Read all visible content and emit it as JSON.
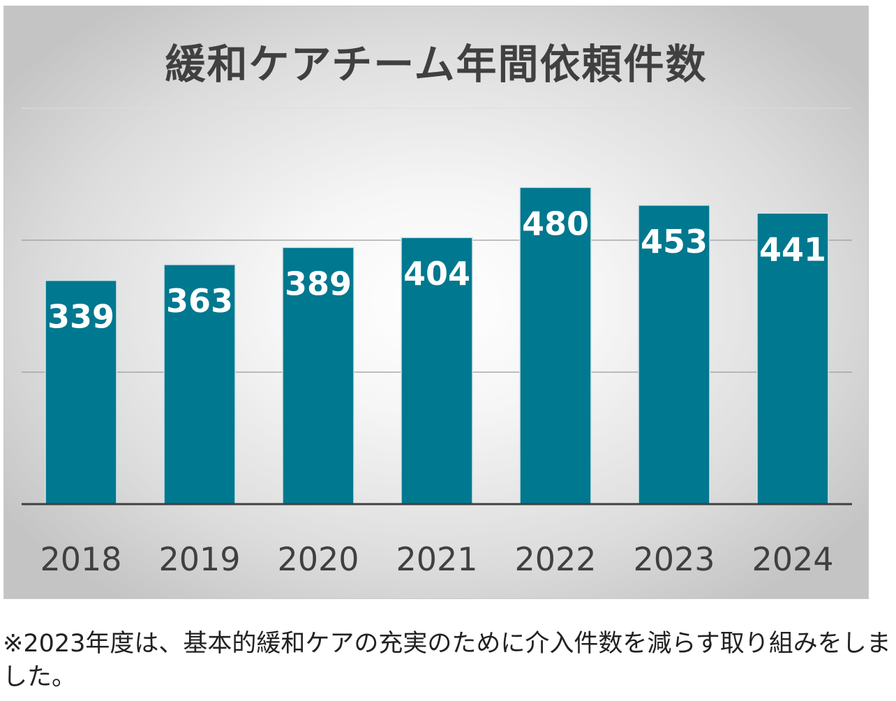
{
  "chart_data": {
    "type": "bar",
    "title": "緩和ケアチーム年間依頼件数",
    "categories": [
      "2018",
      "2019",
      "2020",
      "2021",
      "2022",
      "2023",
      "2024"
    ],
    "values": [
      339,
      363,
      389,
      404,
      480,
      453,
      441
    ],
    "series": [
      {
        "values": [
          339,
          363,
          389,
          404,
          480,
          453,
          441
        ]
      }
    ],
    "xlabel": "",
    "ylabel": "",
    "ylim": [
      0,
      600
    ],
    "y_gridlines": [
      200,
      400,
      600
    ],
    "y_tick_labels_shown": false,
    "data_labels": "inside-top",
    "legend": "none",
    "bar_color": "#00788f",
    "label_color": "#ffffff",
    "background": "radial-gradient-gray"
  },
  "footnote": "※2023年度は、基本的緩和ケアの充実のために介入件数を減らす取り組みをしました。"
}
